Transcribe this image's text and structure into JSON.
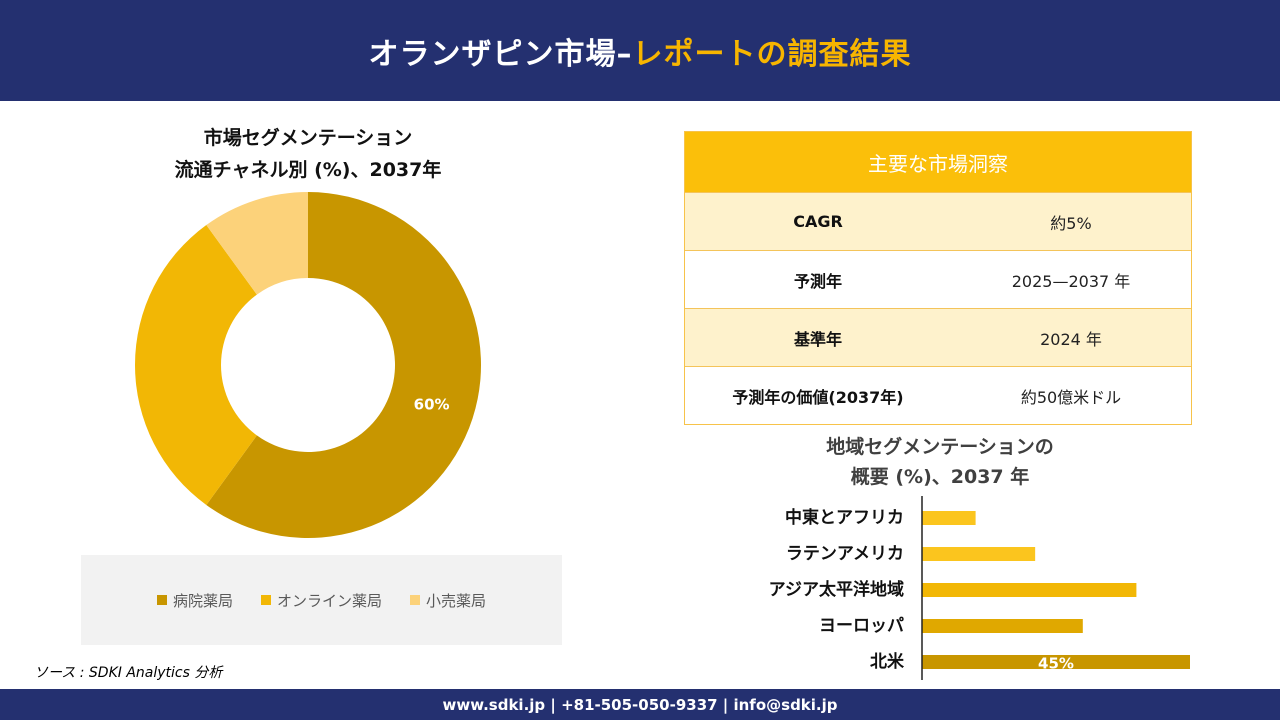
{
  "header": {
    "title_main": "オランザピン市場–",
    "title_accent": "レポートの調査結果"
  },
  "colors": {
    "navy": "#243070",
    "gold": "#f7b500",
    "dark_gold": "#c89600",
    "mid_gold": "#f2b705",
    "light_gold": "#fcd27a"
  },
  "chart_data": [
    {
      "type": "pie",
      "title": "市場セグメンテーション",
      "subtitle": "流通チャネル別 (%)、2037年",
      "categories": [
        "病院薬局",
        "オンライン薬局",
        "小売薬局"
      ],
      "values": [
        60,
        30,
        10
      ],
      "colors": [
        "#c89600",
        "#f2b705",
        "#fcd27a"
      ],
      "data_labels": [
        "60%",
        "",
        ""
      ],
      "donut": true,
      "legend": "bottom"
    },
    {
      "type": "bar",
      "orientation": "horizontal",
      "title": "地域セグメンテーションの",
      "subtitle": "概要 (%)、2037 年",
      "categories": [
        "中東とアフリカ",
        "ラテンアメリカ",
        "アジア太平洋地域",
        "ヨーロッパ",
        "北米"
      ],
      "values": [
        9,
        19,
        36,
        27,
        45
      ],
      "colors": [
        "#fbc51e",
        "#fbc51e",
        "#f2b705",
        "#e0a800",
        "#c89600"
      ],
      "data_labels": [
        "",
        "",
        "",
        "",
        "45%"
      ],
      "xlim": [
        0,
        45
      ],
      "grid": false
    }
  ],
  "insights": {
    "header": "主要な市場洞察",
    "rows": [
      {
        "key": "CAGR",
        "value": "約5%"
      },
      {
        "key": "予測年",
        "value": "2025—2037 年"
      },
      {
        "key": "基準年",
        "value": "2024 年"
      },
      {
        "key": "予測年の価値(2037年)",
        "value": "約50億米ドル"
      }
    ]
  },
  "source": "ソース : SDKI Analytics 分析",
  "footer": {
    "contact": "www.sdki.jp | +81-505-050-9337 | info@sdki.jp"
  }
}
